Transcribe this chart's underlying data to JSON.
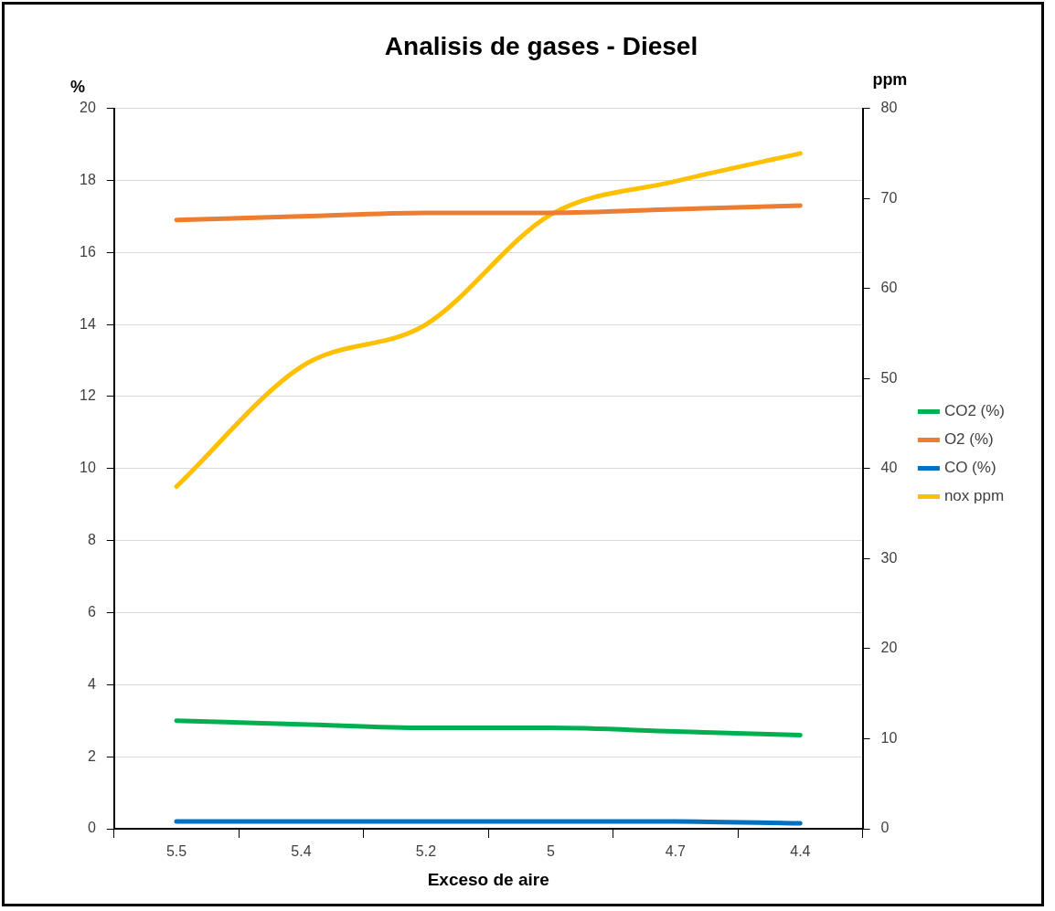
{
  "chart_data": {
    "type": "line",
    "title": "Analisis de gases - Diesel",
    "xlabel": "Exceso de aire",
    "ylabel": "%",
    "y2label": "ppm",
    "categories": [
      "5.5",
      "5.4",
      "5.2",
      "5",
      "4.7",
      "4.4"
    ],
    "series": [
      {
        "name": "CO2 (%)",
        "color": "#00b050",
        "values": [
          3.0,
          2.9,
          2.8,
          2.8,
          2.7,
          2.6
        ]
      },
      {
        "name": "O2 (%)",
        "color": "#ed7d31",
        "values": [
          16.9,
          17.0,
          17.1,
          17.1,
          17.2,
          17.3
        ]
      },
      {
        "name": "CO (%)",
        "color": "#0070c0",
        "values": [
          0.2,
          0.2,
          0.2,
          0.2,
          0.2,
          0.15
        ]
      },
      {
        "name": "nox ppm",
        "color": "#ffc000",
        "axis": "y2",
        "values": [
          38,
          51.3,
          56,
          68.2,
          71.9,
          75
        ]
      }
    ],
    "ylim": [
      0,
      20
    ],
    "yticks": [
      0,
      2,
      4,
      6,
      8,
      10,
      12,
      14,
      16,
      18,
      20
    ],
    "y2lim": [
      0,
      80
    ],
    "y2ticks": [
      0,
      10,
      20,
      30,
      40,
      50,
      60,
      70,
      80
    ],
    "grid": "y",
    "legend": "right",
    "marker": "none",
    "line_style": "solid"
  }
}
